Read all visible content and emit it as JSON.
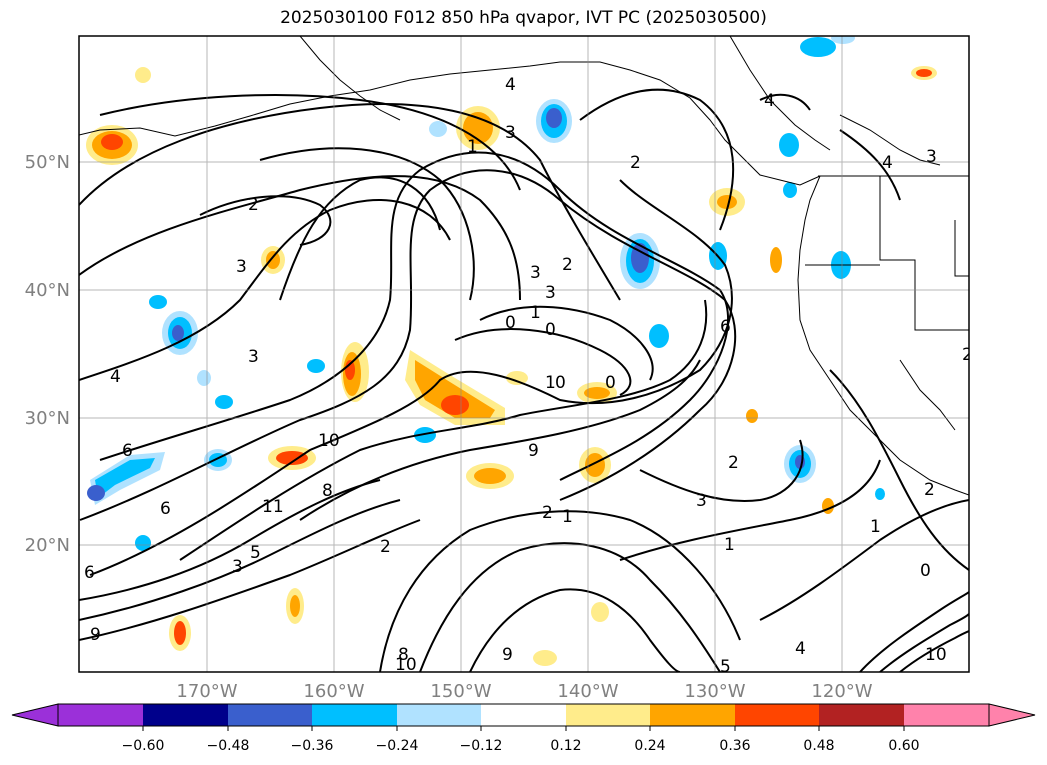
{
  "title": "2025030100 F012 850 hPa qvapor, IVT PC (2025030500)",
  "map": {
    "lon_labels": [
      "170°W",
      "160°W",
      "150°W",
      "140°W",
      "130°W",
      "120°W"
    ],
    "lat_labels": [
      "50°N",
      "40°N",
      "30°N",
      "20°N"
    ],
    "contour_labels": [
      "4",
      "3",
      "2",
      "1",
      "0",
      "3",
      "2",
      "3",
      "1",
      "2",
      "0",
      "1",
      "0",
      "0",
      "6",
      "4",
      "3",
      "2",
      "3",
      "4",
      "6",
      "10",
      "11",
      "8",
      "9",
      "6",
      "5",
      "1",
      "2",
      "1",
      "3",
      "2",
      "9",
      "8",
      "10",
      "5",
      "4",
      "3",
      "0",
      "1",
      "2",
      "10",
      "9",
      "6",
      "2",
      "3",
      "4"
    ]
  },
  "colorbar": {
    "tick_labels": [
      "−0.60",
      "−0.48",
      "−0.36",
      "−0.24",
      "−0.12",
      "0.12",
      "0.24",
      "0.36",
      "0.48",
      "0.60"
    ],
    "colors": [
      "#9b30d9",
      "#00008b",
      "#3a5fcd",
      "#00bfff",
      "#b0e2ff",
      "#ffffff",
      "#ffec8b",
      "#ffa500",
      "#ff4500",
      "#b22222",
      "#ff82ab"
    ]
  },
  "colors": {
    "negative_anomaly": [
      "#3a5fcd",
      "#00bfff",
      "#b0e2ff"
    ],
    "positive_anomaly": [
      "#ffec8b",
      "#ffa500",
      "#ff4500"
    ],
    "grid": "#888888",
    "tick_label": "#808080"
  }
}
